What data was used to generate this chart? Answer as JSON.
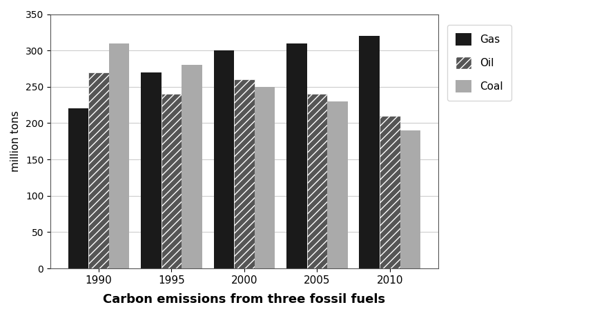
{
  "years": [
    "1990",
    "1995",
    "2000",
    "2005",
    "2010"
  ],
  "gas": [
    220,
    270,
    300,
    310,
    320
  ],
  "oil": [
    270,
    240,
    260,
    240,
    210
  ],
  "coal": [
    310,
    280,
    250,
    230,
    190
  ],
  "xlabel": "Carbon emissions from three fossil fuels",
  "ylabel": "million tons",
  "ylim": [
    0,
    350
  ],
  "yticks": [
    0,
    50,
    100,
    150,
    200,
    250,
    300,
    350
  ],
  "legend_labels": [
    "Gas",
    "Oil",
    "Coal"
  ],
  "bar_width": 0.28,
  "gas_color": "#1a1a1a",
  "oil_color": "#555555",
  "oil_hatch": "///",
  "coal_color": "#aaaaaa",
  "background_color": "#ffffff",
  "xlabel_fontsize": 13,
  "ylabel_fontsize": 11,
  "tick_fontsize": 11
}
